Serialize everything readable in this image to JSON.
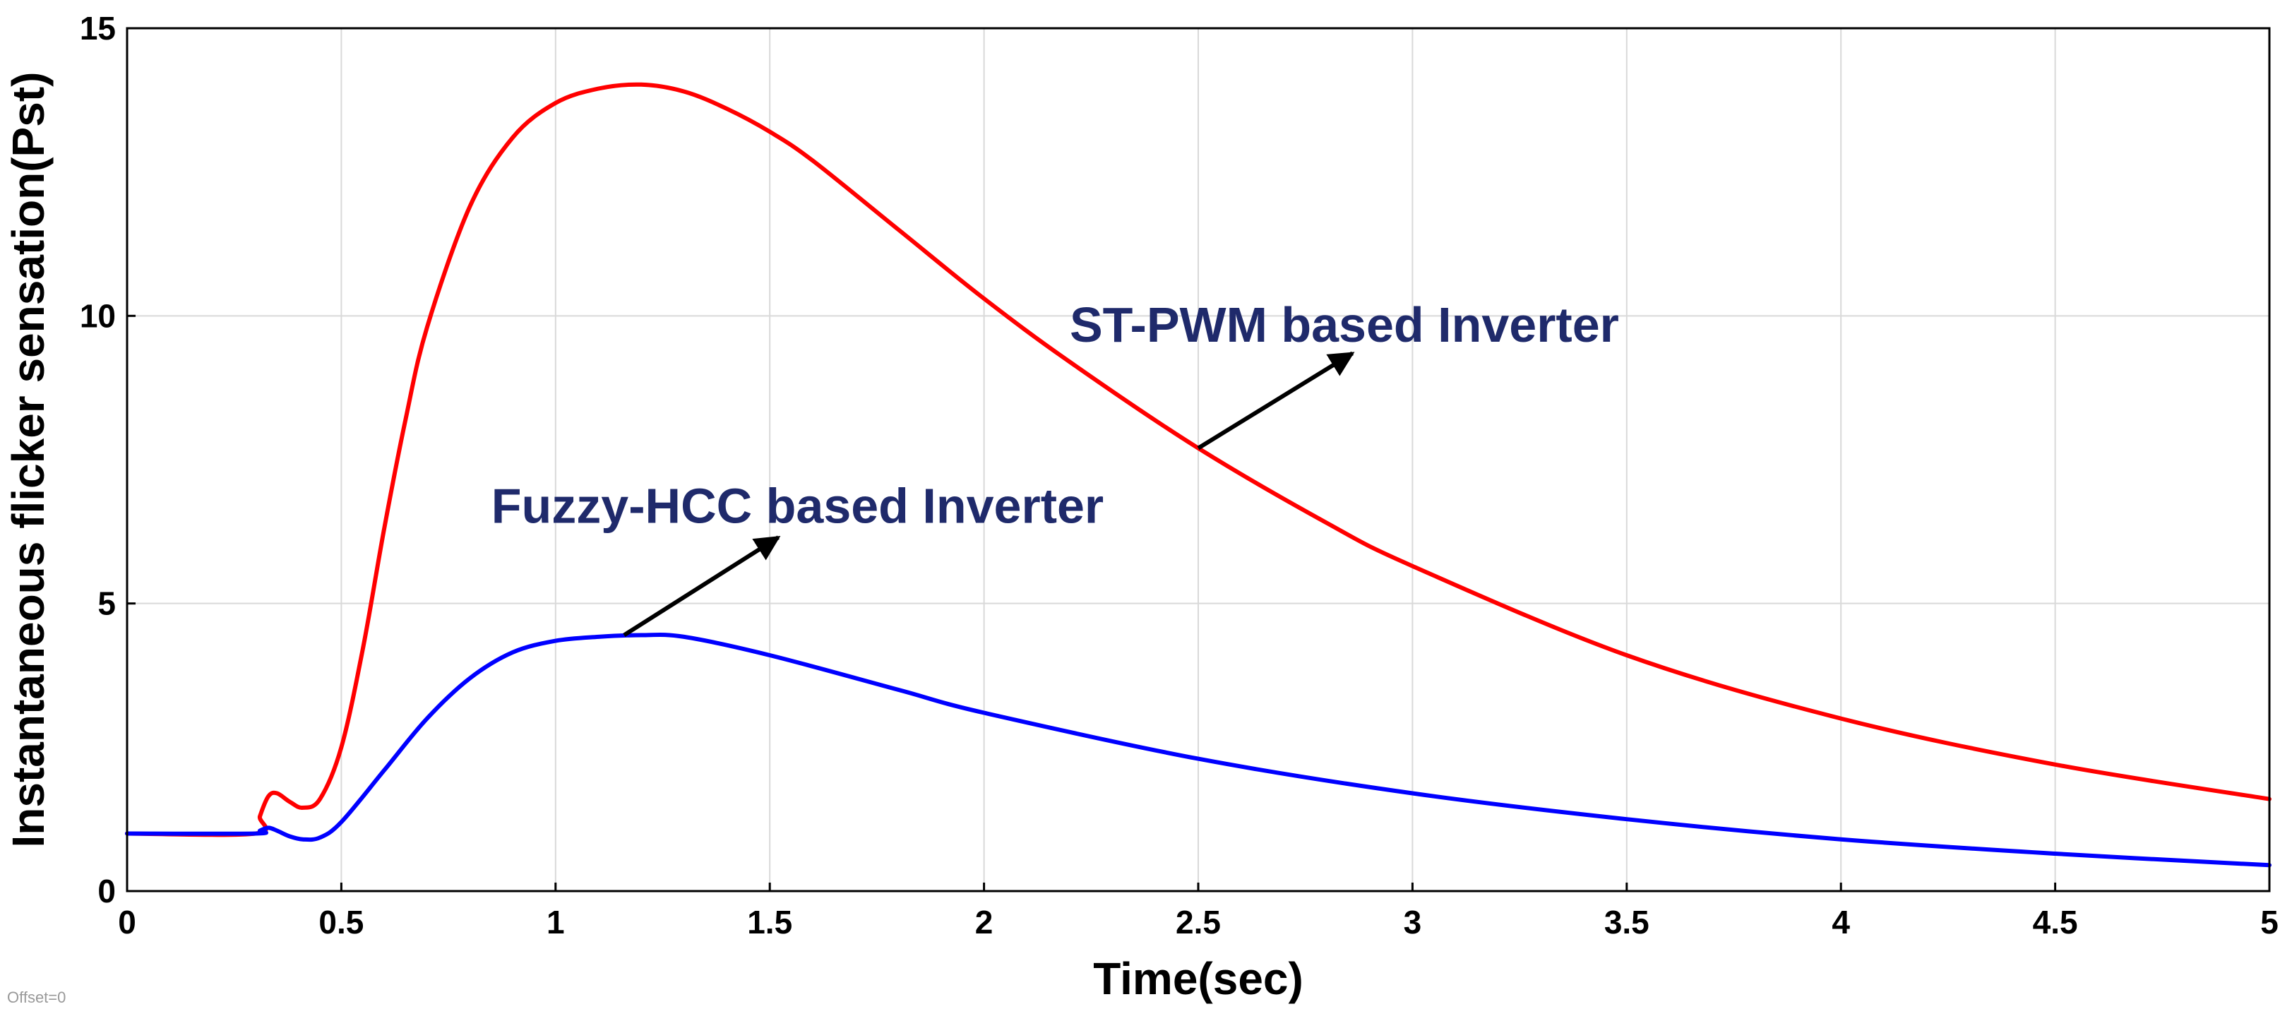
{
  "chart_data": {
    "type": "line",
    "title": "",
    "xlabel": "Time(sec)",
    "ylabel": "Instantaneous flicker sensation(Pst)",
    "xlim": [
      0,
      5
    ],
    "ylim": [
      0,
      15
    ],
    "xticks": [
      0,
      0.5,
      1,
      1.5,
      2,
      2.5,
      3,
      3.5,
      4,
      4.5,
      5
    ],
    "xtick_labels": [
      "0",
      "0.5",
      "1",
      "1.5",
      "2",
      "2.5",
      "3",
      "3.5",
      "4",
      "4.5",
      "5"
    ],
    "yticks": [
      0,
      5,
      10,
      15
    ],
    "ytick_labels": [
      "0",
      "5",
      "10",
      "15"
    ],
    "grid": true,
    "series": [
      {
        "name": "ST-PWM based Inverter",
        "color": "#ff0000",
        "x": [
          0,
          0.3,
          0.31,
          0.33,
          0.35,
          0.38,
          0.41,
          0.45,
          0.5,
          0.55,
          0.6,
          0.65,
          0.7,
          0.8,
          0.9,
          1.0,
          1.1,
          1.2,
          1.3,
          1.4,
          1.5,
          1.6,
          1.8,
          2.0,
          2.2,
          2.5,
          2.8,
          3.0,
          3.5,
          4.0,
          4.5,
          5.0
        ],
        "values": [
          1.0,
          1.0,
          1.3,
          1.65,
          1.7,
          1.55,
          1.45,
          1.6,
          2.5,
          4.2,
          6.3,
          8.2,
          9.8,
          11.9,
          13.1,
          13.7,
          13.95,
          14.02,
          13.9,
          13.6,
          13.2,
          12.7,
          11.5,
          10.3,
          9.2,
          7.7,
          6.4,
          5.65,
          4.1,
          3.0,
          2.2,
          1.6
        ]
      },
      {
        "name": "Fuzzy-HCC based Inverter",
        "color": "#0000ff",
        "x": [
          0,
          0.3,
          0.31,
          0.33,
          0.35,
          0.38,
          0.41,
          0.45,
          0.5,
          0.6,
          0.7,
          0.8,
          0.9,
          1.0,
          1.1,
          1.2,
          1.3,
          1.5,
          1.8,
          2.0,
          2.5,
          3.0,
          3.5,
          4.0,
          4.5,
          5.0
        ],
        "values": [
          1.0,
          1.0,
          1.05,
          1.1,
          1.05,
          0.95,
          0.9,
          0.93,
          1.2,
          2.1,
          3.0,
          3.7,
          4.15,
          4.35,
          4.42,
          4.45,
          4.42,
          4.1,
          3.5,
          3.1,
          2.3,
          1.7,
          1.25,
          0.9,
          0.65,
          0.45
        ]
      }
    ],
    "annotations": [
      {
        "text": "ST-PWM based Inverter",
        "color": "#1f2a6b",
        "label_x": 2.2,
        "label_y": 9.55,
        "arrow_from": [
          2.5,
          7.7
        ],
        "arrow_to": [
          2.86,
          9.35
        ]
      },
      {
        "text": "Fuzzy-HCC based Inverter",
        "color": "#1f2a6b",
        "label_x": 0.85,
        "label_y": 6.4,
        "arrow_from": [
          1.16,
          4.45
        ],
        "arrow_to": [
          1.52,
          6.15
        ]
      }
    ],
    "footnote": "Offset=0"
  }
}
